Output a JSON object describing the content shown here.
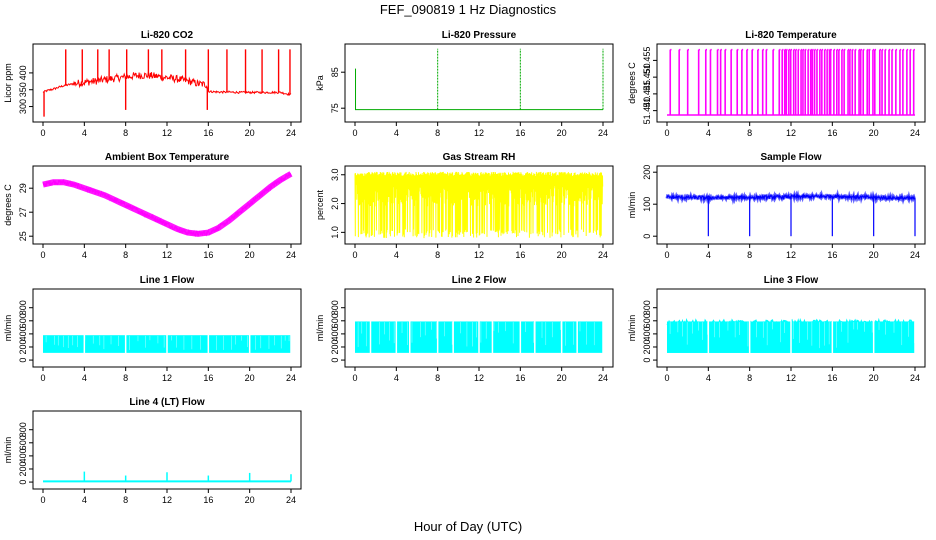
{
  "figure": {
    "title": "FEF_090819  1 Hz Diagnostics",
    "xlabel": "Hour of Day (UTC)"
  },
  "chart_data": [
    {
      "type": "line",
      "title": "Li-820 CO2",
      "xlabel": "",
      "ylabel": "Licor ppm",
      "color": "#ff0000",
      "xlim": [
        0,
        24
      ],
      "ylim": [
        263,
        477
      ],
      "x_ticks": [
        0,
        4,
        8,
        12,
        16,
        20,
        24
      ],
      "y_ticks": [
        300,
        350,
        400
      ],
      "y_tick_labels": [
        "300",
        "350",
        "400"
      ],
      "series": [
        {
          "x": [
            0,
            0.5,
            1,
            2,
            3,
            4,
            5,
            6,
            7,
            8,
            9,
            10,
            11,
            12,
            13,
            14,
            15,
            15.8,
            16,
            17,
            18,
            19,
            20,
            21,
            22,
            23,
            24
          ],
          "y": [
            343,
            348,
            352,
            362,
            368,
            372,
            375,
            380,
            384,
            388,
            392,
            393,
            390,
            386,
            382,
            376,
            368,
            365,
            345,
            343,
            343,
            342,
            342,
            342,
            342,
            342,
            335
          ]
        }
      ],
      "spikes": [
        {
          "x": 0.1,
          "y": 270
        },
        {
          "x": 2.2,
          "y": 470
        },
        {
          "x": 3.8,
          "y": 470
        },
        {
          "x": 5.3,
          "y": 470
        },
        {
          "x": 6.4,
          "y": 470
        },
        {
          "x": 8.0,
          "y": 290
        },
        {
          "x": 8.1,
          "y": 470
        },
        {
          "x": 10.2,
          "y": 470
        },
        {
          "x": 11.5,
          "y": 470
        },
        {
          "x": 13.8,
          "y": 470
        },
        {
          "x": 15.9,
          "y": 290
        },
        {
          "x": 16.0,
          "y": 470
        },
        {
          "x": 17.8,
          "y": 470
        },
        {
          "x": 19.6,
          "y": 470
        },
        {
          "x": 21.2,
          "y": 470
        },
        {
          "x": 22.8,
          "y": 470
        },
        {
          "x": 23.9,
          "y": 470
        }
      ]
    },
    {
      "type": "line",
      "title": "Li-820 Pressure",
      "xlabel": "",
      "ylabel": "kPa",
      "color": "#00aa00",
      "xlim": [
        0,
        24
      ],
      "ylim": [
        72,
        92
      ],
      "x_ticks": [
        0,
        4,
        8,
        12,
        16,
        20,
        24
      ],
      "y_ticks": [
        75,
        85
      ],
      "y_tick_labels": [
        "75",
        "85"
      ],
      "series": [
        {
          "x": [
            0,
            24
          ],
          "y": [
            74.6,
            74.6
          ]
        }
      ],
      "spikes": [
        {
          "x": 0.05,
          "y": 86
        },
        {
          "x": 8.0,
          "y": 91.5
        },
        {
          "x": 16.0,
          "y": 91.5
        },
        {
          "x": 24.0,
          "y": 91.5
        }
      ]
    },
    {
      "type": "line",
      "title": "Li-820 Temperature",
      "xlabel": "",
      "ylabel": "degrees C",
      "color": "#ff00ff",
      "xlim": [
        0,
        24
      ],
      "ylim": [
        51.4375,
        51.459
      ],
      "x_ticks": [
        0,
        4,
        8,
        12,
        16,
        20,
        24
      ],
      "y_ticks": [
        51.44,
        51.445,
        51.45,
        51.455
      ],
      "y_tick_labels": [
        "51.440",
        "51.445",
        "51.450",
        "51.455"
      ],
      "levels": [
        51.4387,
        51.4582
      ],
      "toggle_density": [
        {
          "from": 0,
          "to": 1,
          "count": 1
        },
        {
          "from": 1,
          "to": 4,
          "count": 4
        },
        {
          "from": 4,
          "to": 11,
          "count": 14
        },
        {
          "from": 11,
          "to": 16,
          "count": 22
        },
        {
          "from": 16,
          "to": 20,
          "count": 15
        },
        {
          "from": 20,
          "to": 24,
          "count": 12
        }
      ]
    },
    {
      "type": "line",
      "title": "Ambient Box Temperature",
      "xlabel": "",
      "ylabel": "degrees C",
      "color": "#ff00ff",
      "xlim": [
        0,
        24
      ],
      "ylim": [
        24.6,
        30.6
      ],
      "x_ticks": [
        0,
        4,
        8,
        12,
        16,
        20,
        24
      ],
      "y_ticks": [
        25,
        27,
        29
      ],
      "y_tick_labels": [
        "25",
        "27",
        "29"
      ],
      "series": [
        {
          "x": [
            0,
            1,
            2,
            3,
            4,
            5,
            6,
            7,
            8,
            9,
            10,
            11,
            12,
            13,
            14,
            15,
            16,
            17,
            18,
            19,
            20,
            21,
            22,
            23,
            24
          ],
          "y": [
            29.3,
            29.5,
            29.5,
            29.3,
            29.0,
            28.7,
            28.4,
            28.0,
            27.6,
            27.2,
            26.8,
            26.4,
            26.0,
            25.6,
            25.3,
            25.2,
            25.3,
            25.7,
            26.3,
            27.0,
            27.7,
            28.4,
            29.1,
            29.7,
            30.2
          ]
        }
      ],
      "noise_band": 0.4
    },
    {
      "type": "line",
      "title": "Gas Stream RH",
      "xlabel": "",
      "ylabel": "percent",
      "color": "#ffff00",
      "xlim": [
        0,
        24
      ],
      "ylim": [
        0.7,
        3.2
      ],
      "x_ticks": [
        0,
        4,
        8,
        12,
        16,
        20,
        24
      ],
      "y_ticks": [
        1.0,
        2.0,
        3.0
      ],
      "y_tick_labels": [
        "1.0",
        "2.0",
        "3.0"
      ],
      "band": [
        0.8,
        3.1
      ]
    },
    {
      "type": "line",
      "title": "Sample Flow",
      "xlabel": "",
      "ylabel": "ml/min",
      "color": "#0000ff",
      "xlim": [
        0,
        24
      ],
      "ylim": [
        -15,
        210
      ],
      "x_ticks": [
        0,
        4,
        8,
        12,
        16,
        20,
        24
      ],
      "y_ticks": [
        0,
        100,
        200
      ],
      "y_tick_labels": [
        "0",
        "100",
        "200"
      ],
      "series": [
        {
          "x": [
            0,
            4,
            8,
            12,
            16,
            20,
            24
          ],
          "y": [
            122,
            120,
            121,
            123,
            125,
            121,
            118
          ]
        }
      ],
      "dips": [
        {
          "x": 4.0,
          "y": 0
        },
        {
          "x": 8.0,
          "y": 0
        },
        {
          "x": 12.0,
          "y": 0
        },
        {
          "x": 16.0,
          "y": 0
        },
        {
          "x": 20.0,
          "y": 0
        },
        {
          "x": 24.0,
          "y": 0
        }
      ]
    },
    {
      "type": "area",
      "title": "Line 1 Flow",
      "xlabel": "",
      "ylabel": "ml/min",
      "color": "#00ffff",
      "xlim": [
        0,
        24
      ],
      "ylim": [
        -60,
        1040
      ],
      "x_ticks": [
        0,
        4,
        8,
        12,
        16,
        20,
        24
      ],
      "y_ticks": [
        0,
        200,
        400,
        600,
        800
      ],
      "y_tick_labels": [
        "0",
        "200",
        "400",
        "600",
        "800"
      ],
      "band": [
        110,
        380
      ],
      "gaps": [
        4,
        8,
        12,
        16,
        20,
        24
      ]
    },
    {
      "type": "area",
      "title": "Line 2 Flow",
      "xlabel": "",
      "ylabel": "ml/min",
      "color": "#00ffff",
      "xlim": [
        0,
        24
      ],
      "ylim": [
        -60,
        1040
      ],
      "x_ticks": [
        0,
        4,
        8,
        12,
        16,
        20,
        24
      ],
      "y_ticks": [
        0,
        200,
        400,
        600,
        800
      ],
      "y_tick_labels": [
        "0",
        "200",
        "400",
        "600",
        "800"
      ],
      "band": [
        110,
        590
      ],
      "gaps": [
        1.5,
        4,
        5.3,
        8,
        9.5,
        12,
        13.3,
        16,
        17.4,
        20,
        21.5,
        24
      ]
    },
    {
      "type": "area",
      "title": "Line 3 Flow",
      "xlabel": "",
      "ylabel": "ml/min",
      "color": "#00ffff",
      "xlim": [
        0,
        24
      ],
      "ylim": [
        -60,
        1040
      ],
      "x_ticks": [
        0,
        4,
        8,
        12,
        16,
        20,
        24
      ],
      "y_ticks": [
        0,
        200,
        400,
        600,
        800
      ],
      "y_tick_labels": [
        "0",
        "200",
        "400",
        "600",
        "800"
      ],
      "band": [
        110,
        590
      ],
      "gaps": [
        4,
        8,
        12,
        16,
        20,
        24
      ]
    },
    {
      "type": "line",
      "title": "Line 4 (LT) Flow",
      "xlabel": "",
      "ylabel": "ml/min",
      "color": "#00ffff",
      "xlim": [
        0,
        24
      ],
      "ylim": [
        -60,
        1040
      ],
      "x_ticks": [
        0,
        4,
        8,
        12,
        16,
        20,
        24
      ],
      "y_ticks": [
        0,
        200,
        400,
        600,
        800
      ],
      "y_tick_labels": [
        "0",
        "200",
        "400",
        "600",
        "800"
      ],
      "series": [
        {
          "x": [
            0,
            24
          ],
          "y": [
            10,
            10
          ]
        }
      ],
      "spikes": [
        {
          "x": 4.0,
          "y": 160
        },
        {
          "x": 8.0,
          "y": 100
        },
        {
          "x": 12.0,
          "y": 150
        },
        {
          "x": 16.0,
          "y": 100
        },
        {
          "x": 20.0,
          "y": 140
        },
        {
          "x": 24.0,
          "y": 120
        }
      ]
    }
  ]
}
